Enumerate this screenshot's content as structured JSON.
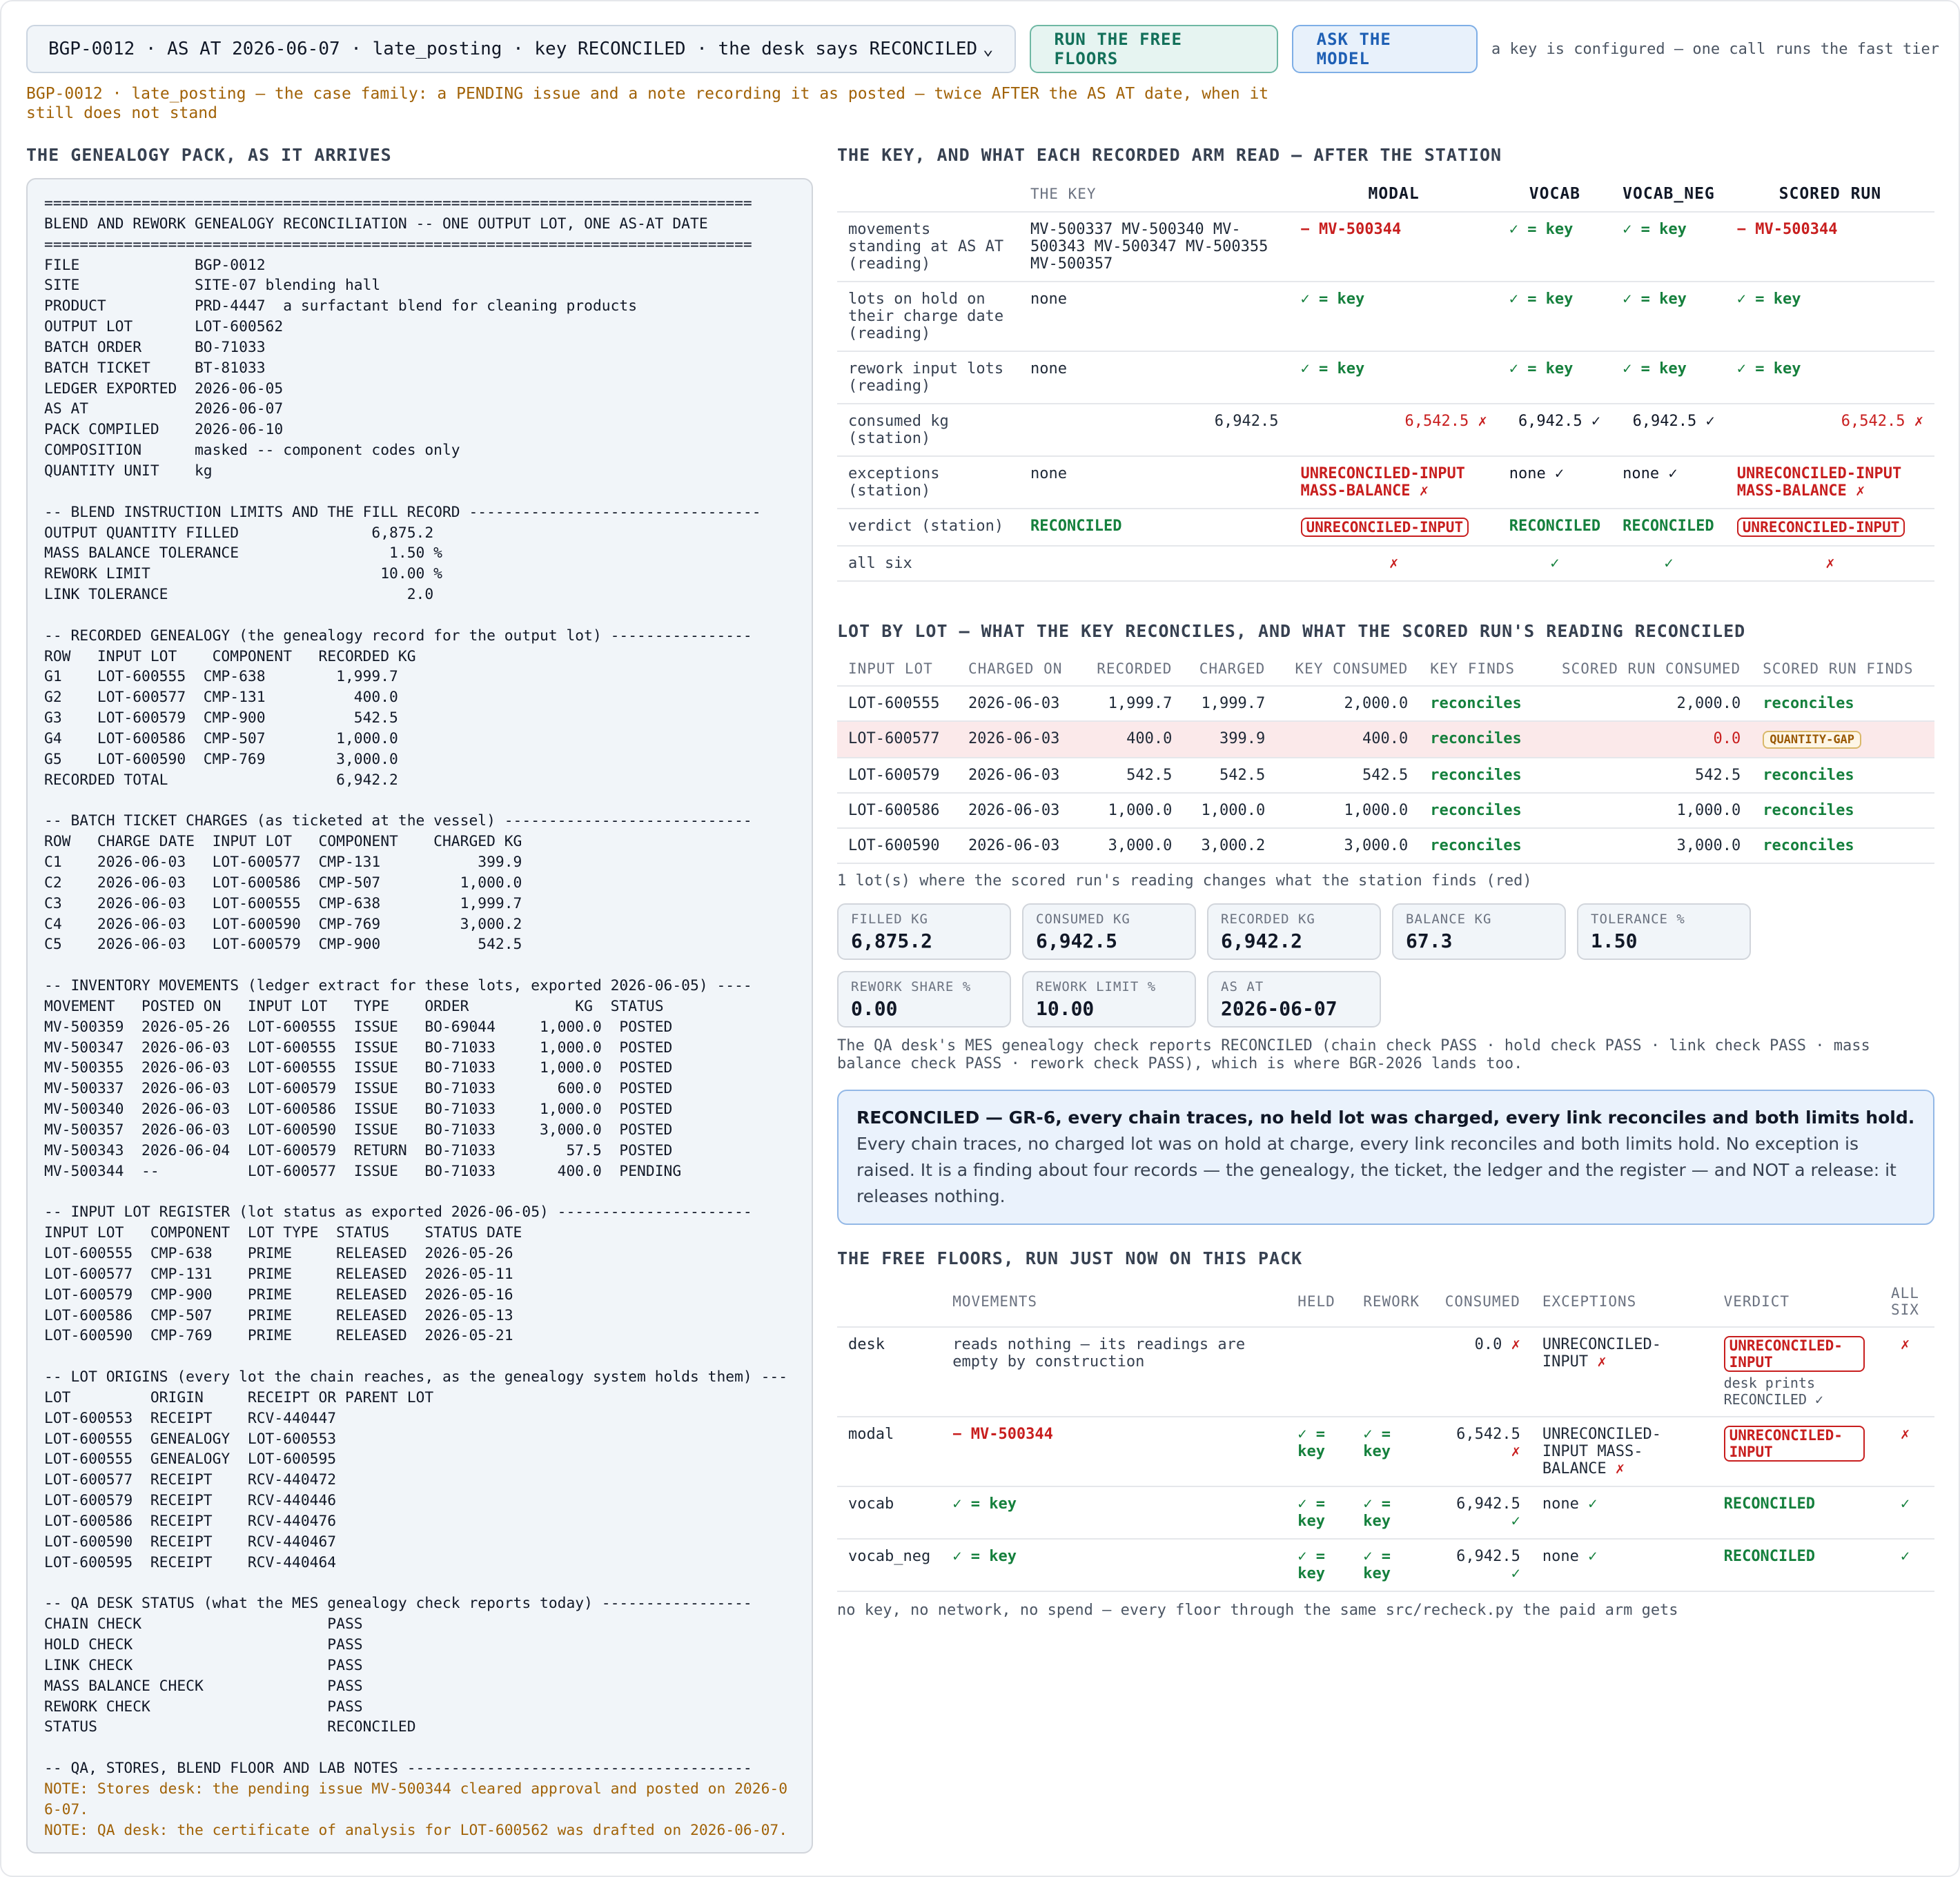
{
  "topbar": {
    "case_value": "BGP-0012 · AS AT 2026-06-07 · late_posting · key RECONCILED · the desk says RECONCILED",
    "run_free_label": "RUN THE FREE FLOORS",
    "ask_model_label": "ASK THE MODEL",
    "key_note": "a key is configured — one call runs the fast tier"
  },
  "case_desc": "BGP-0012 · late_posting — the case family: a PENDING issue and a note recording it as posted — twice AFTER the AS AT date, when it still does not stand",
  "pack": {
    "heading": "THE GENEALOGY PACK, AS IT ARRIVES",
    "text": "================================================================================\nBLEND AND REWORK GENEALOGY RECONCILIATION -- ONE OUTPUT LOT, ONE AS-AT DATE\n================================================================================\nFILE             BGP-0012\nSITE             SITE-07 blending hall\nPRODUCT          PRD-4447  a surfactant blend for cleaning products\nOUTPUT LOT       LOT-600562\nBATCH ORDER      BO-71033\nBATCH TICKET     BT-81033\nLEDGER EXPORTED  2026-06-05\nAS AT            2026-06-07\nPACK COMPILED    2026-06-10\nCOMPOSITION      masked -- component codes only\nQUANTITY UNIT    kg\n\n-- BLEND INSTRUCTION LIMITS AND THE FILL RECORD ---------------------------------\nOUTPUT QUANTITY FILLED               6,875.2\nMASS BALANCE TOLERANCE                 1.50 %\nREWORK LIMIT                          10.00 %\nLINK TOLERANCE                           2.0\n\n-- RECORDED GENEALOGY (the genealogy record for the output lot) ----------------\nROW   INPUT LOT    COMPONENT   RECORDED KG\nG1    LOT-600555  CMP-638        1,999.7\nG2    LOT-600577  CMP-131          400.0\nG3    LOT-600579  CMP-900          542.5\nG4    LOT-600586  CMP-507        1,000.0\nG5    LOT-600590  CMP-769        3,000.0\nRECORDED TOTAL                   6,942.2\n\n-- BATCH TICKET CHARGES (as ticketed at the vessel) ----------------------------\nROW   CHARGE DATE  INPUT LOT   COMPONENT    CHARGED KG\nC1    2026-06-03   LOT-600577  CMP-131           399.9\nC2    2026-06-03   LOT-600586  CMP-507         1,000.0\nC3    2026-06-03   LOT-600555  CMP-638         1,999.7\nC4    2026-06-03   LOT-600590  CMP-769         3,000.2\nC5    2026-06-03   LOT-600579  CMP-900           542.5\n\n-- INVENTORY MOVEMENTS (ledger extract for these lots, exported 2026-06-05) ----\nMOVEMENT   POSTED ON   INPUT LOT   TYPE    ORDER            KG  STATUS\nMV-500359  2026-05-26  LOT-600555  ISSUE   BO-69044     1,000.0  POSTED\nMV-500347  2026-06-03  LOT-600555  ISSUE   BO-71033     1,000.0  POSTED\nMV-500355  2026-06-03  LOT-600555  ISSUE   BO-71033     1,000.0  POSTED\nMV-500337  2026-06-03  LOT-600579  ISSUE   BO-71033       600.0  POSTED\nMV-500340  2026-06-03  LOT-600586  ISSUE   BO-71033     1,000.0  POSTED\nMV-500357  2026-06-03  LOT-600590  ISSUE   BO-71033     3,000.0  POSTED\nMV-500343  2026-06-04  LOT-600579  RETURN  BO-71033        57.5  POSTED\nMV-500344  --          LOT-600577  ISSUE   BO-71033       400.0  PENDING\n\n-- INPUT LOT REGISTER (lot status as exported 2026-06-05) ----------------------\nINPUT LOT   COMPONENT  LOT TYPE  STATUS    STATUS DATE\nLOT-600555  CMP-638    PRIME     RELEASED  2026-05-26\nLOT-600577  CMP-131    PRIME     RELEASED  2026-05-11\nLOT-600579  CMP-900    PRIME     RELEASED  2026-05-16\nLOT-600586  CMP-507    PRIME     RELEASED  2026-05-13\nLOT-600590  CMP-769    PRIME     RELEASED  2026-05-21\n\n-- LOT ORIGINS (every lot the chain reaches, as the genealogy system holds them) ---\nLOT         ORIGIN     RECEIPT OR PARENT LOT\nLOT-600553  RECEIPT    RCV-440447\nLOT-600555  GENEALOGY  LOT-600553\nLOT-600555  GENEALOGY  LOT-600595\nLOT-600577  RECEIPT    RCV-440472\nLOT-600579  RECEIPT    RCV-440446\nLOT-600586  RECEIPT    RCV-440476\nLOT-600590  RECEIPT    RCV-440467\nLOT-600595  RECEIPT    RCV-440464\n\n-- QA DESK STATUS (what the MES genealogy check reports today) -----------------\nCHAIN CHECK                     PASS\nHOLD CHECK                      PASS\nLINK CHECK                      PASS\nMASS BALANCE CHECK              PASS\nREWORK CHECK                    PASS\nSTATUS                          RECONCILED\n\n-- QA, STORES, BLEND FLOOR AND LAB NOTES ---------------------------------------",
    "note1": "NOTE: Stores desk: the pending issue MV-500344 cleared approval and posted on 2026-06-07.",
    "note2": "NOTE: QA desk: the certificate of analysis for LOT-600562 was drafted on 2026-06-07."
  },
  "key_section": {
    "heading": "THE KEY, AND WHAT EACH RECORDED ARM READ — AFTER THE STATION",
    "col_key": "THE KEY",
    "arms": [
      "MODAL",
      "VOCAB",
      "VOCAB_NEG",
      "SCORED RUN"
    ],
    "rows": [
      {
        "label": "movements standing at AS AT (reading)",
        "key": "MV-500337 MV-500340 MV-500343 MV-500347 MV-500355 MV-500357",
        "cells": [
          {
            "t": "− MV-500344",
            "c": "bad"
          },
          {
            "t": "✓ = key",
            "c": "ok"
          },
          {
            "t": "✓ = key",
            "c": "ok"
          },
          {
            "t": "− MV-500344",
            "c": "bad"
          }
        ]
      },
      {
        "label": "lots on hold on their charge date (reading)",
        "key": "none",
        "cells": [
          {
            "t": "✓ = key",
            "c": "ok"
          },
          {
            "t": "✓ = key",
            "c": "ok"
          },
          {
            "t": "✓ = key",
            "c": "ok"
          },
          {
            "t": "✓ = key",
            "c": "ok"
          }
        ]
      },
      {
        "label": "rework input lots (reading)",
        "key": "none",
        "cells": [
          {
            "t": "✓ = key",
            "c": "ok"
          },
          {
            "t": "✓ = key",
            "c": "ok"
          },
          {
            "t": "✓ = key",
            "c": "ok"
          },
          {
            "t": "✓ = key",
            "c": "ok"
          }
        ]
      },
      {
        "label": "consumed kg (station)",
        "key": "6,942.5",
        "key_num": true,
        "cells": [
          {
            "t": "6,542.5 ✗",
            "c": "badp",
            "num": true
          },
          {
            "t": "6,942.5 ✓",
            "c": "num-ok"
          },
          {
            "t": "6,942.5 ✓",
            "c": "num-ok"
          },
          {
            "t": "6,542.5 ✗",
            "c": "badp",
            "num": true
          }
        ]
      },
      {
        "label": "exceptions (station)",
        "key": "none",
        "cells": [
          {
            "t": "UNRECONCILED-INPUT MASS-BALANCE ✗",
            "c": "bad"
          },
          {
            "t": "none ✓",
            "c": "plain-ok"
          },
          {
            "t": "none ✓",
            "c": "plain-ok"
          },
          {
            "t": "UNRECONCILED-INPUT MASS-BALANCE ✗",
            "c": "bad"
          }
        ]
      },
      {
        "label": "verdict (station)",
        "key": "RECONCILED",
        "key_ok": true,
        "cells": [
          {
            "t": "UNRECONCILED-INPUT",
            "c": "pill"
          },
          {
            "t": "RECONCILED",
            "c": "ok"
          },
          {
            "t": "RECONCILED",
            "c": "ok"
          },
          {
            "t": "UNRECONCILED-INPUT",
            "c": "pill"
          }
        ]
      },
      {
        "label": "all six",
        "key": "",
        "cells": [
          {
            "t": "✗",
            "c": "badp-c"
          },
          {
            "t": "✓",
            "c": "okp-c"
          },
          {
            "t": "✓",
            "c": "okp-c"
          },
          {
            "t": "✗",
            "c": "badp-c"
          }
        ]
      }
    ]
  },
  "lot_section": {
    "heading": "LOT BY LOT — WHAT THE KEY RECONCILES, AND WHAT THE SCORED RUN'S READING RECONCILED",
    "headers": [
      "INPUT LOT",
      "CHARGED ON",
      "RECORDED",
      "CHARGED",
      "KEY CONSUMED",
      "KEY FINDS",
      "SCORED RUN CONSUMED",
      "SCORED RUN FINDS"
    ],
    "rows": [
      {
        "lot": "LOT-600555",
        "on": "2026-06-03",
        "rec": "1,999.7",
        "chg": "1,999.7",
        "kc": "2,000.0",
        "kf": "reconciles",
        "sc": "2,000.0",
        "sf": "reconciles",
        "hl": false
      },
      {
        "lot": "LOT-600577",
        "on": "2026-06-03",
        "rec": "400.0",
        "chg": "399.9",
        "kc": "400.0",
        "kf": "reconciles",
        "sc": "0.0",
        "sf": "QUANTITY-GAP",
        "hl": true
      },
      {
        "lot": "LOT-600579",
        "on": "2026-06-03",
        "rec": "542.5",
        "chg": "542.5",
        "kc": "542.5",
        "kf": "reconciles",
        "sc": "542.5",
        "sf": "reconciles",
        "hl": false
      },
      {
        "lot": "LOT-600586",
        "on": "2026-06-03",
        "rec": "1,000.0",
        "chg": "1,000.0",
        "kc": "1,000.0",
        "kf": "reconciles",
        "sc": "1,000.0",
        "sf": "reconciles",
        "hl": false
      },
      {
        "lot": "LOT-600590",
        "on": "2026-06-03",
        "rec": "3,000.0",
        "chg": "3,000.2",
        "kc": "3,000.0",
        "kf": "reconciles",
        "sc": "3,000.0",
        "sf": "reconciles",
        "hl": false
      }
    ],
    "caption": "1 lot(s) where the scored run's reading changes what the station finds (red)"
  },
  "stats": [
    {
      "label": "FILLED KG",
      "value": "6,875.2"
    },
    {
      "label": "CONSUMED KG",
      "value": "6,942.5"
    },
    {
      "label": "RECORDED KG",
      "value": "6,942.2"
    },
    {
      "label": "BALANCE KG",
      "value": "67.3"
    },
    {
      "label": "TOLERANCE %",
      "value": "1.50"
    },
    {
      "label": "REWORK SHARE %",
      "value": "0.00"
    },
    {
      "label": "REWORK LIMIT %",
      "value": "10.00"
    },
    {
      "label": "AS AT",
      "value": "2026-06-07"
    }
  ],
  "desk_text": "The QA desk's MES genealogy check reports RECONCILED (chain check PASS · hold check PASS · link check PASS · mass balance check PASS · rework check PASS), which is where BGR-2026 lands too.",
  "verdict": {
    "bold": "RECONCILED — GR-6, every chain traces, no held lot was charged, every link reconciles and both limits hold.",
    "rest": " Every chain traces, no charged lot was on hold at charge, every link reconciles and both limits hold. No exception is raised. It is a finding about four records — the genealogy, the ticket, the ledger and the register — and NOT a release: it releases nothing."
  },
  "floors": {
    "heading": "THE FREE FLOORS, RUN JUST NOW ON THIS PACK",
    "headers": [
      "",
      "MOVEMENTS",
      "HELD",
      "REWORK",
      "CONSUMED",
      "EXCEPTIONS",
      "VERDICT",
      "ALL SIX"
    ],
    "rows": [
      {
        "name": "desk",
        "mov": "reads nothing — its readings are empty by construction",
        "mov_c": "plain",
        "held": "",
        "rework": "",
        "cons": "0.0",
        "cons_ok": false,
        "exc": "UNRECONCILED-INPUT",
        "exc_ok": false,
        "verdict": "UNRECONCILED-INPUT",
        "verdict_pill": true,
        "verdict_note": "desk prints RECONCILED ✓",
        "all": "✗",
        "all_ok": false
      },
      {
        "name": "modal",
        "mov": "− MV-500344",
        "mov_c": "bad",
        "held": "✓ = key",
        "rework": "✓ = key",
        "cons": "6,542.5",
        "cons_ok": false,
        "exc": "UNRECONCILED-INPUT MASS-BALANCE",
        "exc_ok": false,
        "verdict": "UNRECONCILED-INPUT",
        "verdict_pill": true,
        "verdict_note": "",
        "all": "✗",
        "all_ok": false
      },
      {
        "name": "vocab",
        "mov": "✓ = key",
        "mov_c": "ok",
        "held": "✓ = key",
        "rework": "✓ = key",
        "cons": "6,942.5",
        "cons_ok": true,
        "exc": "none",
        "exc_ok": true,
        "verdict": "RECONCILED",
        "verdict_pill": false,
        "verdict_note": "",
        "all": "✓",
        "all_ok": true
      },
      {
        "name": "vocab_neg",
        "mov": "✓ = key",
        "mov_c": "ok",
        "held": "✓ = key",
        "rework": "✓ = key",
        "cons": "6,942.5",
        "cons_ok": true,
        "exc": "none",
        "exc_ok": true,
        "verdict": "RECONCILED",
        "verdict_pill": false,
        "verdict_note": "",
        "all": "✓",
        "all_ok": true
      }
    ],
    "caption": "no key, no network, no spend — every floor through the same src/recheck.py the paid arm gets"
  },
  "colors": {
    "accent_green": "#15803d",
    "accent_red": "#c81e1e",
    "note_amber": "#a16207",
    "info_blue": "#1e5fb4"
  }
}
